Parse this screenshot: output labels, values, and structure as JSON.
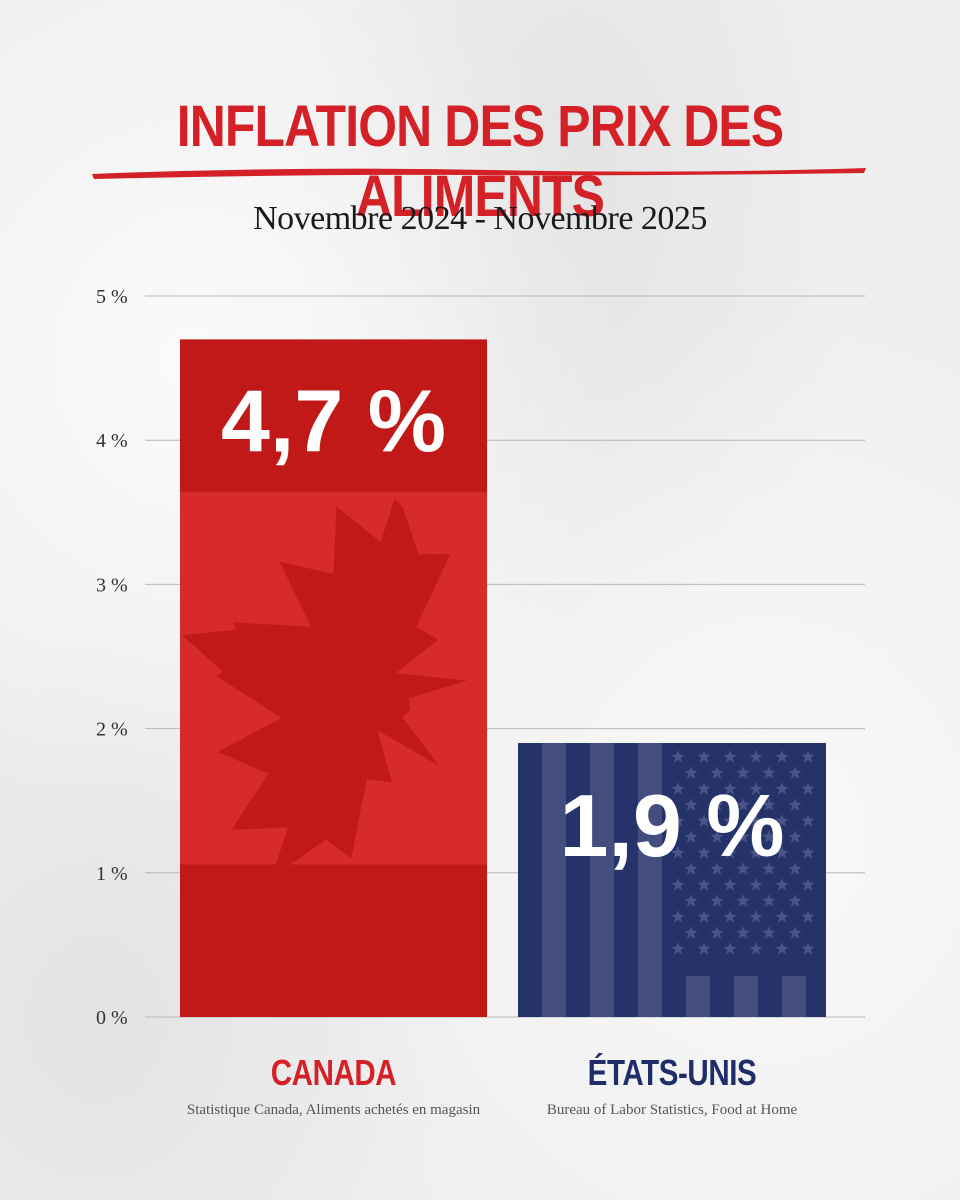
{
  "chart_data": {
    "type": "bar",
    "title": "INFLATION DES PRIX DES ALIMENTS",
    "subtitle": "Novembre 2024 - Novembre 2025",
    "categories": [
      "CANADA",
      "ÉTATS-UNIS"
    ],
    "values": [
      4.7,
      1.9
    ],
    "value_labels": [
      "4,7 %",
      "1,9 %"
    ],
    "sources": [
      "Statistique Canada, Aliments achetés en magasin",
      "Bureau of Labor Statistics, Food at Home"
    ],
    "ylim": [
      0,
      5
    ],
    "yticks": [
      {
        "value": 0,
        "label": "0 %"
      },
      {
        "value": 1,
        "label": "1 %"
      },
      {
        "value": 2,
        "label": "2 %"
      },
      {
        "value": 3,
        "label": "3 %"
      },
      {
        "value": 4,
        "label": "4 %"
      },
      {
        "value": 5,
        "label": "5 %"
      }
    ],
    "grid": true,
    "colors": {
      "title": "#d42127",
      "canada": "#d72b2b",
      "canada_dark": "#c11818",
      "usa": "#26336b",
      "usa_stripe": "#434d7e",
      "usa_label": "#1f2d6b"
    }
  }
}
